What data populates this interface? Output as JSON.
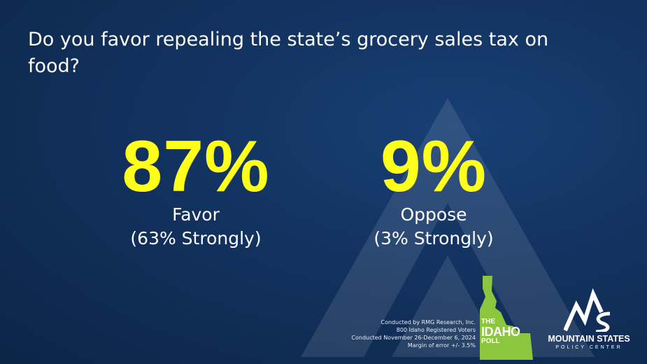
{
  "question": "Do you favor repealing the state’s grocery sales tax on food?",
  "favor": {
    "percent": "87%",
    "label": "Favor",
    "detail": "(63% Strongly)"
  },
  "oppose": {
    "percent": "9%",
    "label": "Oppose",
    "detail": "(3% Strongly)"
  },
  "footnote": {
    "line1": "Conducted by RMG Research, Inc.",
    "line2": "800 Idaho Registered Voters",
    "line3": "Conducted November 26-December 6, 2024",
    "line4": "Margin of error +/- 3.5%"
  },
  "idaho_poll": {
    "line1": "THE",
    "line2": "IDAHO",
    "line3": "POLL"
  },
  "mountain_states": {
    "name": "MOUNTAIN STATES",
    "sub": "POLICY CENTER"
  },
  "colors": {
    "background": "#12325f",
    "highlight": "#ffff1a",
    "idaho_green": "#8cc63f"
  },
  "icons": [
    "mountain-watermark-icon",
    "idaho-state-icon",
    "mountain-states-logo-icon"
  ]
}
